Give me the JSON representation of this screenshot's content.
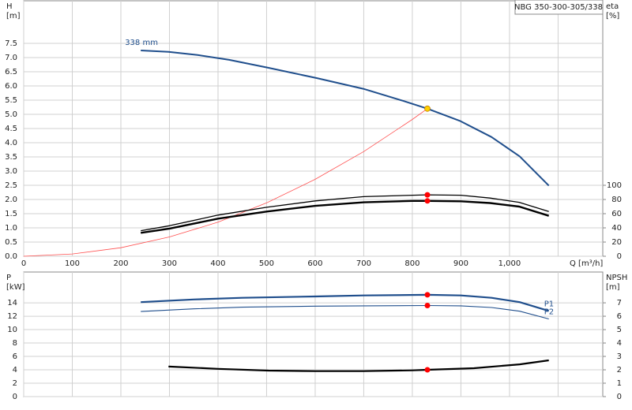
{
  "chart_data": [
    {
      "type": "line",
      "title": "NBG 350-300-305/338",
      "ylabel": "H",
      "yunit": "[m]",
      "y2label": "eta",
      "y2unit": "[%]",
      "xlabel": "Q [m³/h]",
      "xlim": [
        0,
        1192
      ],
      "xticks": [
        0,
        100,
        200,
        300,
        400,
        500,
        600,
        700,
        800,
        900,
        {
          "value": 1000,
          "label": "1,000"
        },
        {
          "value": 1100,
          "label": null
        }
      ],
      "xtick_labels": true,
      "ylim": [
        0,
        9
      ],
      "yticks": [
        {
          "value": 0,
          "label": "0.0"
        },
        {
          "value": 0.5,
          "label": "0.5"
        },
        {
          "value": 1,
          "label": "1.0"
        },
        {
          "value": 1.5,
          "label": "1.5"
        },
        {
          "value": 2,
          "label": "2.0"
        },
        {
          "value": 2.5,
          "label": "2.5"
        },
        {
          "value": 3,
          "label": "3.0"
        },
        {
          "value": 3.5,
          "label": "3.5"
        },
        {
          "value": 4,
          "label": "4.0"
        },
        {
          "value": 4.5,
          "label": "4.5"
        },
        {
          "value": 5,
          "label": "5.0"
        },
        {
          "value": 5.5,
          "label": "5.5"
        },
        {
          "value": 6,
          "label": "6.0"
        },
        {
          "value": 6.5,
          "label": "6.5"
        },
        {
          "value": 7,
          "label": "7.0"
        },
        {
          "value": 7.5,
          "label": "7.5"
        }
      ],
      "y2lim": [
        0,
        360
      ],
      "y2ticks": [
        0,
        20,
        40,
        60,
        80,
        100
      ],
      "grid": true,
      "series": [
        {
          "name": "338 mm",
          "name_position": "start",
          "color": "#1f4e8c",
          "width": 2,
          "x": [
            241,
            298,
            358,
            423,
            504,
            602,
            699,
            780,
            831,
            899,
            963,
            1021,
            1081
          ],
          "values": [
            7.25,
            7.2,
            7.09,
            6.92,
            6.64,
            6.28,
            5.9,
            5.48,
            5.2,
            4.76,
            4.2,
            3.52,
            2.49
          ]
        },
        {
          "color": "#ff5050",
          "width": 0.8,
          "x": [
            0,
            100,
            200,
            300,
            400,
            500,
            600,
            700,
            800,
            831
          ],
          "values": [
            0,
            0.08,
            0.3,
            0.68,
            1.2,
            1.88,
            2.71,
            3.69,
            4.82,
            5.2
          ]
        },
        {
          "color": "#000000",
          "width": 1.3,
          "axis": "y2",
          "x": [
            241,
            300,
            400,
            500,
            600,
            700,
            800,
            831,
            900,
            960,
            1020,
            1081
          ],
          "values": [
            36,
            43,
            58,
            69,
            78,
            84,
            86,
            86.5,
            86,
            82,
            76,
            63
          ]
        },
        {
          "color": "#000000",
          "width": 2.4,
          "axis": "y2",
          "x": [
            241,
            300,
            400,
            500,
            600,
            700,
            800,
            831,
            900,
            960,
            1020,
            1081
          ],
          "values": [
            33,
            39,
            53,
            63,
            71,
            76,
            78,
            78,
            77.5,
            75,
            70,
            57
          ]
        }
      ],
      "points": [
        {
          "x": 831,
          "y": 5.2,
          "color": "#ffd000"
        },
        {
          "x": 831,
          "y": 86.5,
          "axis": "y2",
          "color": "#ff0000"
        },
        {
          "x": 831,
          "y": 78,
          "axis": "y2",
          "color": "#ff0000"
        }
      ]
    },
    {
      "type": "line",
      "ylabel": "P",
      "yunit": "[kW]",
      "y2label": "NPSH",
      "y2unit": "[m]",
      "xlim": [
        0,
        1192
      ],
      "xticks": [
        0,
        100,
        200,
        300,
        400,
        500,
        600,
        700,
        800,
        900,
        1000,
        1100
      ],
      "xtick_labels": false,
      "ylim": [
        0,
        18.6
      ],
      "yticks": [
        0,
        2,
        4,
        6,
        8,
        10,
        12,
        14
      ],
      "y2lim": [
        0,
        9.3
      ],
      "y2ticks": [
        0,
        1,
        2,
        3,
        4,
        5,
        6,
        7
      ],
      "grid": true,
      "series": [
        {
          "name": "P1",
          "name_position": "end",
          "color": "#1f4e8c",
          "width": 2.2,
          "x": [
            241,
            350,
            450,
            600,
            700,
            831,
            900,
            963,
            1021,
            1081
          ],
          "values": [
            14.1,
            14.5,
            14.75,
            14.95,
            15.1,
            15.2,
            15.1,
            14.75,
            14.1,
            12.8
          ]
        },
        {
          "name": "P2",
          "name_position": "end",
          "color": "#1f4e8c",
          "width": 1.1,
          "x": [
            241,
            350,
            450,
            600,
            700,
            831,
            900,
            963,
            1021,
            1081
          ],
          "values": [
            12.7,
            13.1,
            13.35,
            13.5,
            13.55,
            13.6,
            13.55,
            13.3,
            12.75,
            11.6
          ]
        },
        {
          "color": "#000000",
          "width": 2.2,
          "axis": "y2",
          "x": [
            298,
            400,
            504,
            600,
            699,
            800,
            831,
            927,
            1021,
            1081
          ],
          "values": [
            2.24,
            2.07,
            1.94,
            1.9,
            1.9,
            1.96,
            2.0,
            2.12,
            2.41,
            2.71
          ]
        }
      ],
      "points": [
        {
          "x": 831,
          "y": 15.2,
          "color": "#ff0000"
        },
        {
          "x": 831,
          "y": 13.6,
          "color": "#ff0000"
        },
        {
          "x": 831,
          "y": 2.0,
          "axis": "y2",
          "color": "#ff0000"
        }
      ]
    }
  ]
}
